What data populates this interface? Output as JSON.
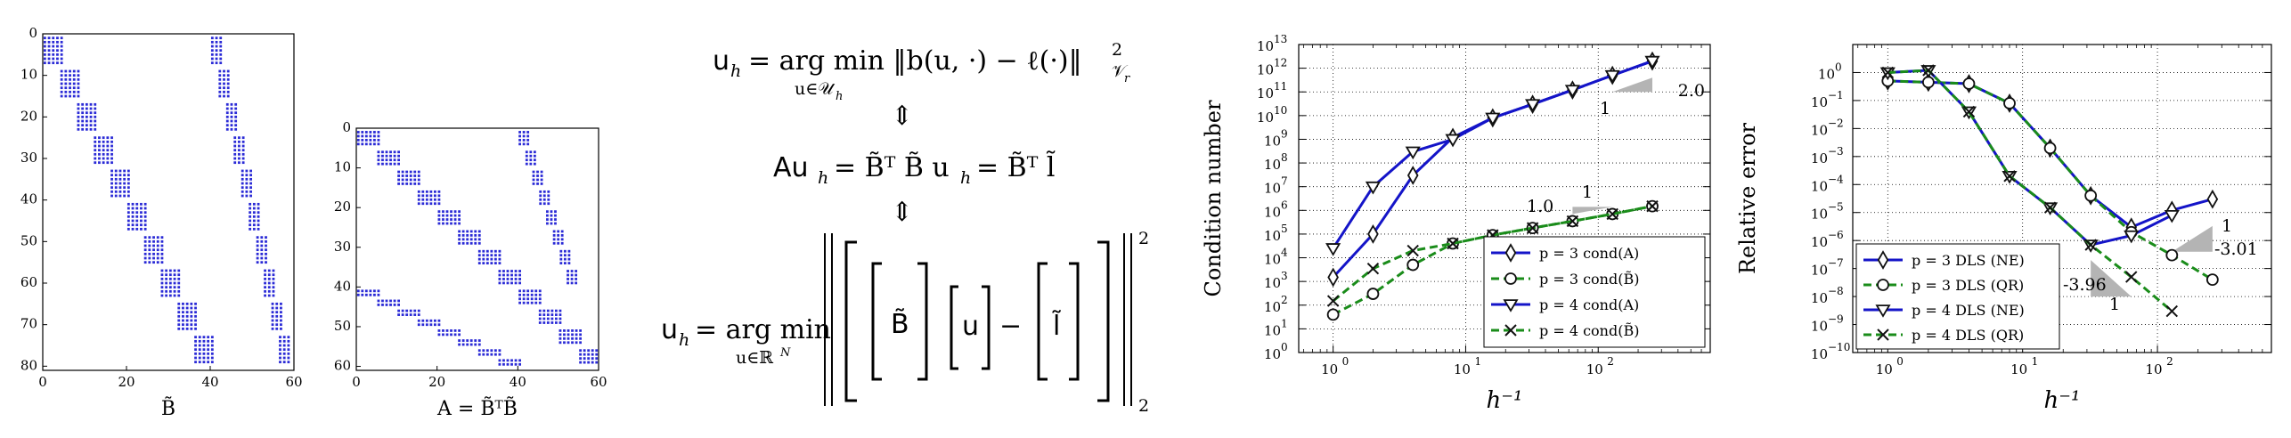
{
  "spy_plots": [
    {
      "caption": "B̃",
      "x_ticks": [
        "0",
        "20",
        "40",
        "60"
      ],
      "y_ticks": [
        "0",
        "10",
        "20",
        "30",
        "40",
        "50",
        "60",
        "70",
        "80"
      ],
      "xlim": [
        0,
        60
      ],
      "ylim": [
        0,
        81
      ]
    },
    {
      "caption": "A = B̃ᵀB̃",
      "x_ticks": [
        "0",
        "20",
        "40",
        "60"
      ],
      "y_ticks": [
        "0",
        "10",
        "20",
        "30",
        "40",
        "50",
        "60"
      ],
      "xlim": [
        0,
        60
      ],
      "ylim": [
        0,
        61
      ]
    }
  ],
  "equations": {
    "eq1_lhs": "u",
    "eq1_rhs": "= arg min ‖b(u, ·) − ℓ(·)‖",
    "eq1_under": "u∈𝒰",
    "eq1_sup": "2",
    "eq1_sub": "𝒱",
    "arrow": "⇕",
    "eq2": "Au",
    "eq2_rhs": "= B̃ᵀ B̃ u",
    "eq2_rhs2": "= B̃ᵀ l̃",
    "eq3_lhs": "u",
    "eq3_op": "= arg min",
    "eq3_under": "u∈ℝ",
    "eq3_under_sup": "N",
    "mat_B": "B̃",
    "mat_u": "u",
    "minus": "−",
    "mat_l": "l̃",
    "norm_sup": "2",
    "norm_sub": "2",
    "sub_h": "h",
    "sub_r": "r"
  },
  "chart_data": [
    {
      "type": "line",
      "ylabel": "Condition number",
      "xlabel": "h⁻¹",
      "xscale": "log",
      "yscale": "log",
      "xlim": [
        0.55,
        700
      ],
      "ylim": [
        1,
        10000000000000.0
      ],
      "grid": true,
      "x_ticks": [
        {
          "v": 1,
          "b": "10",
          "e": "0"
        },
        {
          "v": 10,
          "b": "10",
          "e": "1"
        },
        {
          "v": 100,
          "b": "10",
          "e": "2"
        }
      ],
      "y_ticks": [
        {
          "v": 1,
          "b": "10",
          "e": "0"
        },
        {
          "v": 10,
          "b": "10",
          "e": "1"
        },
        {
          "v": 100,
          "b": "10",
          "e": "2"
        },
        {
          "v": 1000,
          "b": "10",
          "e": "3"
        },
        {
          "v": 10000,
          "b": "10",
          "e": "4"
        },
        {
          "v": 100000,
          "b": "10",
          "e": "5"
        },
        {
          "v": 1000000,
          "b": "10",
          "e": "6"
        },
        {
          "v": 10000000,
          "b": "10",
          "e": "7"
        },
        {
          "v": 100000000,
          "b": "10",
          "e": "8"
        },
        {
          "v": 1000000000,
          "b": "10",
          "e": "9"
        },
        {
          "v": 10000000000,
          "b": "10",
          "e": "10"
        },
        {
          "v": 100000000000,
          "b": "10",
          "e": "11"
        },
        {
          "v": 1000000000000,
          "b": "10",
          "e": "12"
        },
        {
          "v": 10000000000000,
          "b": "10",
          "e": "13"
        }
      ],
      "legend_position": "bottom-right",
      "series": [
        {
          "name": "p = 3 cond(A)",
          "color": "#1414c8",
          "style": "solid",
          "marker": "diamond",
          "x": [
            1,
            2,
            4,
            8,
            16,
            32,
            64,
            128,
            256
          ],
          "y": [
            1500,
            100000,
            30000000,
            1200000000,
            8000000000,
            30000000000,
            120000000000,
            500000000000,
            2000000000000
          ]
        },
        {
          "name": "p = 3 cond(B̃)",
          "color": "#1a8c1a",
          "style": "dashed",
          "marker": "circle",
          "x": [
            1,
            2,
            4,
            8,
            16,
            32,
            64,
            128,
            256
          ],
          "y": [
            40,
            300,
            5000,
            40000,
            90000,
            180000,
            350000,
            700000,
            1500000
          ]
        },
        {
          "name": "p = 4 cond(A)",
          "color": "#1414c8",
          "style": "solid",
          "marker": "triangle-down",
          "x": [
            1,
            2,
            4,
            8,
            16,
            32,
            64,
            128,
            256
          ],
          "y": [
            25000,
            10000000,
            300000000,
            1000000000,
            8000000000,
            30000000000,
            120000000000,
            500000000000,
            2000000000000
          ]
        },
        {
          "name": "p = 4 cond(B̃)",
          "color": "#1a8c1a",
          "style": "dashed",
          "marker": "x",
          "x": [
            1,
            2,
            4,
            8,
            16,
            32,
            64,
            128,
            256
          ],
          "y": [
            150,
            3500,
            20000,
            40000,
            90000,
            180000,
            350000,
            700000,
            1500000
          ]
        }
      ],
      "annotations": [
        {
          "text": "2.0",
          "triangle": "upper",
          "x0": 128,
          "x1": 256,
          "y0": 100000000000,
          "y1": 400000000000
        },
        {
          "text": "1",
          "at": "below-upper-triangle"
        },
        {
          "text": "1.0",
          "triangle": "lower",
          "x0": 64,
          "x1": 128,
          "y0": 700000,
          "y1": 1400000
        },
        {
          "text": "1",
          "at": "above-lower-triangle"
        }
      ]
    },
    {
      "type": "line",
      "ylabel": "Relative error",
      "xlabel": "h⁻¹",
      "xscale": "log",
      "yscale": "log",
      "xlim": [
        0.55,
        700
      ],
      "ylim": [
        1e-10,
        10
      ],
      "grid": true,
      "x_ticks": [
        {
          "v": 1,
          "b": "10",
          "e": "0"
        },
        {
          "v": 10,
          "b": "10",
          "e": "1"
        },
        {
          "v": 100,
          "b": "10",
          "e": "2"
        }
      ],
      "y_ticks": [
        {
          "v": 1e-10,
          "b": "10",
          "e": "−10"
        },
        {
          "v": 1e-09,
          "b": "10",
          "e": "−9"
        },
        {
          "v": 1e-08,
          "b": "10",
          "e": "−8"
        },
        {
          "v": 1e-07,
          "b": "10",
          "e": "−7"
        },
        {
          "v": 1e-06,
          "b": "10",
          "e": "−6"
        },
        {
          "v": 1e-05,
          "b": "10",
          "e": "−5"
        },
        {
          "v": 0.0001,
          "b": "10",
          "e": "−4"
        },
        {
          "v": 0.001,
          "b": "10",
          "e": "−3"
        },
        {
          "v": 0.01,
          "b": "10",
          "e": "−2"
        },
        {
          "v": 0.1,
          "b": "10",
          "e": "−1"
        },
        {
          "v": 1,
          "b": "10",
          "e": "0"
        }
      ],
      "legend_position": "bottom-left",
      "series": [
        {
          "name": "p = 3 DLS (NE)",
          "color": "#1414c8",
          "style": "solid",
          "marker": "diamond",
          "x": [
            1,
            2,
            4,
            8,
            16,
            32,
            64,
            128,
            256
          ],
          "y": [
            0.5,
            0.45,
            0.4,
            0.08,
            0.002,
            4e-05,
            3e-06,
            1.2e-05,
            3e-05
          ]
        },
        {
          "name": "p = 3 DLS (QR)",
          "color": "#1a8c1a",
          "style": "dashed",
          "marker": "circle",
          "x": [
            1,
            2,
            4,
            8,
            16,
            32,
            64,
            128,
            256
          ],
          "y": [
            0.5,
            0.45,
            0.4,
            0.08,
            0.002,
            4e-05,
            2e-06,
            3e-07,
            4e-08
          ]
        },
        {
          "name": "p = 4 DLS (NE)",
          "color": "#1414c8",
          "style": "solid",
          "marker": "triangle-down",
          "x": [
            1,
            2,
            4,
            8,
            16,
            32,
            64,
            128
          ],
          "y": [
            1,
            1.2,
            0.04,
            0.0002,
            1.5e-05,
            7e-07,
            1.5e-06,
            8e-06
          ]
        },
        {
          "name": "p = 4 DLS (QR)",
          "color": "#1a8c1a",
          "style": "dashed",
          "marker": "x",
          "x": [
            1,
            2,
            4,
            8,
            16,
            32,
            64,
            128
          ],
          "y": [
            1,
            1.2,
            0.04,
            0.0002,
            1.5e-05,
            7e-07,
            5e-08,
            3e-09
          ]
        }
      ],
      "annotations": [
        {
          "text": "1",
          "at": "above-upper-triangle"
        },
        {
          "text": "-3.01",
          "triangle": "upper",
          "x0": 128,
          "x1": 256,
          "y0": 4e-07,
          "y1": 3.3e-06
        },
        {
          "text": "-3.96",
          "triangle": "lower",
          "x0": 32,
          "x1": 64,
          "y0": 2e-07,
          "y1": 1e-08
        },
        {
          "text": "1",
          "at": "below-lower-triangle"
        }
      ]
    }
  ]
}
